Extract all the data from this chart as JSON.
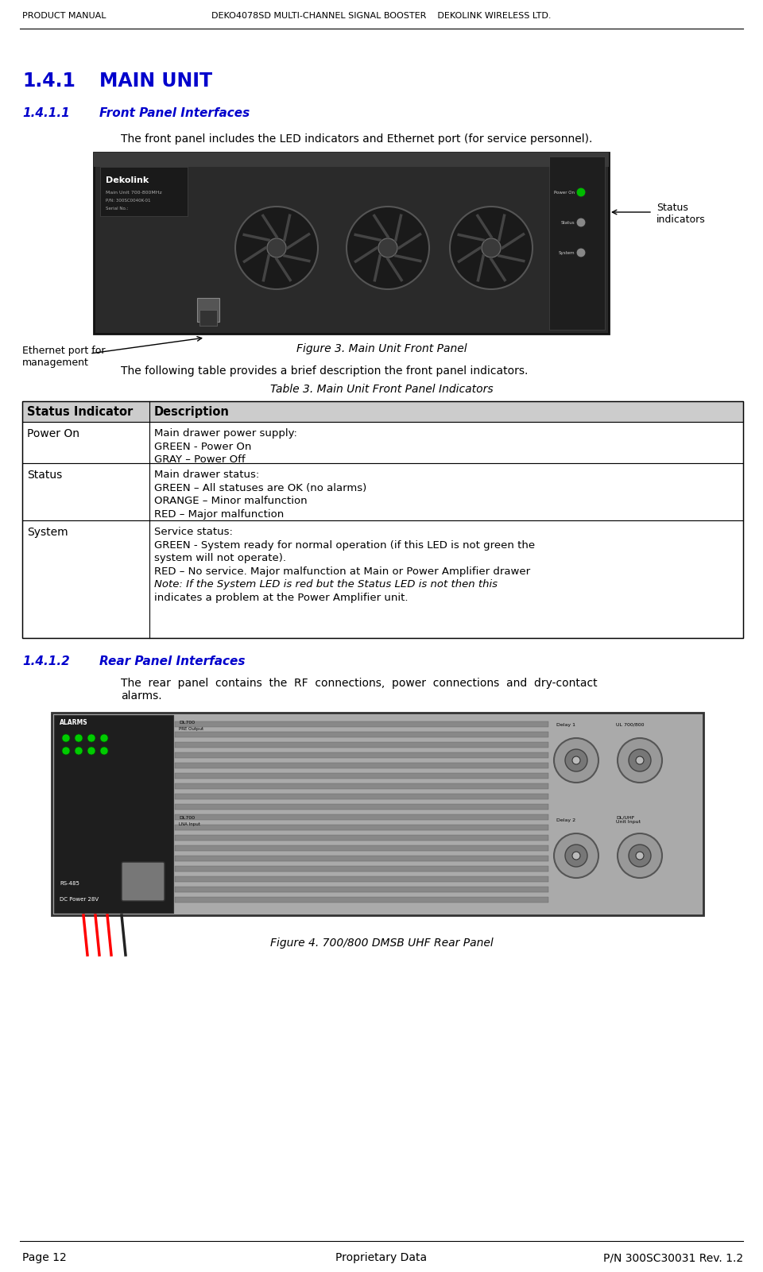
{
  "header_left": "Product Manual",
  "header_center": "Deko4078SD Multi-Channel Signal Booster",
  "header_right": "Dekolink Wireless Ltd.",
  "footer_left": "Page 12",
  "footer_center": "Proprietary Data",
  "footer_right": "P/N 300SC30031 Rev. 1.2",
  "section_number": "1.4.1",
  "section_title": "Main Unit",
  "subsection1_number": "1.4.1.1",
  "subsection1_title": "Front Panel Interfaces",
  "subsection1_body": "The front panel includes the LED indicators and Ethernet port (for service personnel).",
  "figure3_caption": "Figure 3. Main Unit Front Panel",
  "figure3_label1": "Status\nindicators",
  "figure3_label2": "Ethernet port for\nmanagement",
  "table3_caption": "Table 3. Main Unit Front Panel Indicators",
  "table3_intro": "The following table provides a brief description the front panel indicators.",
  "table3_col1": "Status Indicator",
  "table3_col2": "Description",
  "table3_rows": [
    {
      "indicator": "Power On",
      "description": "Main drawer power supply:\nGREEN - Power On\nGRAY – Power Off"
    },
    {
      "indicator": "Status",
      "description": "Main drawer status:\nGREEN – All statuses are OK (no alarms)\nORANGE – Minor malfunction\nRED – Major malfunction"
    },
    {
      "indicator": "System",
      "description": "Service status:\nGREEN - System ready for normal operation (if this LED is not green the\nsystem will not operate).\nRED – No service. Major malfunction at Main or Power Amplifier drawer\nNote: If the System LED is red but the Status LED is not then this\nindicates a problem at the Power Amplifier unit."
    }
  ],
  "subsection2_number": "1.4.1.2",
  "subsection2_title": "Rear Panel Interfaces",
  "subsection2_body1": "The  rear  panel  contains  the  RF  connections,  power  connections  and  dry-contact",
  "subsection2_body2": "alarms.",
  "figure4_caption": "Figure 4. 700/800 DMSB UHF Rear Panel",
  "bg_color": "#ffffff",
  "text_color": "#000000",
  "blue_color": "#0000cc",
  "table_header_bg": "#cccccc"
}
